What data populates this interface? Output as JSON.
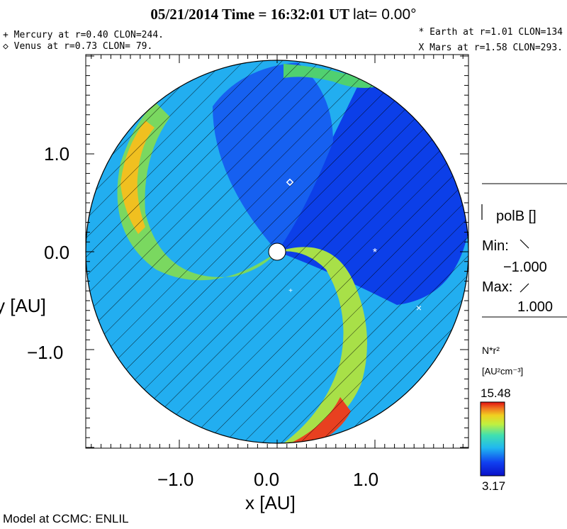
{
  "header": {
    "date": "05/21/2014",
    "time_label": "Time =",
    "time": "16:32:01 UT",
    "lat": "lat= 0.00°"
  },
  "planets": {
    "mercury": "+ Mercury at r=0.40 CLON=244.",
    "venus": "◇ Venus at r=0.73 CLON= 79.",
    "earth": "* Earth at  r=1.01 CLON=134",
    "mars": "X Mars at r=1.58 CLON=293."
  },
  "axes": {
    "xlabel": "x [AU]",
    "ylabel": "y [AU]",
    "xticks": [
      "−1.0",
      "0.0",
      "1.0"
    ],
    "yticks": [
      "1.0",
      "0.0",
      "−1.0"
    ]
  },
  "polarity_legend": {
    "title": "polB []",
    "min_label": "Min:",
    "min_value": "−1.000",
    "max_label": "Max:",
    "max_value": "1.000"
  },
  "colorbar": {
    "title": "N*r²",
    "units": "[AU²cm⁻³]",
    "max": "15.48",
    "min": "3.17"
  },
  "footer": {
    "credit": "Model at CCMC: ENLIL"
  },
  "colors": {
    "low": "#0a1ed6",
    "mid": "#22c0f0",
    "high": "#f03010",
    "earth_marker": "#ffffff"
  },
  "chart_data": {
    "type": "heatmap",
    "xlabel": "x [AU]",
    "ylabel": "y [AU]",
    "xlim": [
      -2.0,
      2.0
    ],
    "ylim": [
      -2.0,
      2.0
    ],
    "colorscale": {
      "min": 3.17,
      "max": 15.48
    },
    "markers": [
      {
        "name": "Earth",
        "symbol": "*",
        "r": 1.01,
        "clon": 134
      },
      {
        "name": "Venus",
        "symbol": "◇",
        "r": 0.73,
        "clon": 79
      },
      {
        "name": "Mars",
        "symbol": "X",
        "r": 1.58,
        "clon": 293
      },
      {
        "name": "Mercury",
        "symbol": "+",
        "r": 0.4,
        "clon": 244
      }
    ]
  }
}
